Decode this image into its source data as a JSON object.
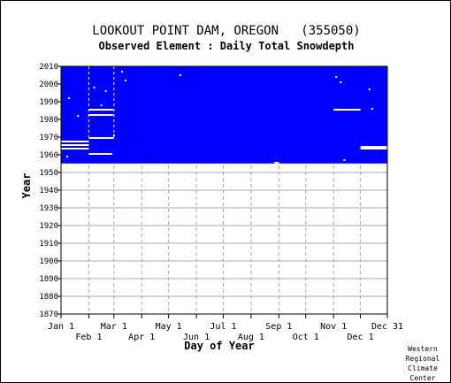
{
  "chart_data": {
    "type": "heatmap",
    "title": "LOOKOUT POINT DAM, OREGON   (355050)",
    "subtitle": "Observed Element : Daily Total Snowdepth",
    "xlabel": "Day of Year",
    "ylabel": "Year",
    "xlim": [
      1,
      365
    ],
    "ylim": [
      1870,
      2010
    ],
    "grid": true,
    "fill_color": "#0000ff",
    "gap_color": "#ffffff",
    "x_ticks_upper": [
      {
        "label": "Jan 1",
        "day": 1
      },
      {
        "label": "Mar 1",
        "day": 60
      },
      {
        "label": "May 1",
        "day": 121
      },
      {
        "label": "Jul 1",
        "day": 182
      },
      {
        "label": "Sep 1",
        "day": 244
      },
      {
        "label": "Nov 1",
        "day": 305
      },
      {
        "label": "Dec 31",
        "day": 365
      }
    ],
    "x_ticks_lower": [
      {
        "label": "Feb 1",
        "day": 32
      },
      {
        "label": "Apr 1",
        "day": 91
      },
      {
        "label": "Jun 1",
        "day": 152
      },
      {
        "label": "Aug 1",
        "day": 213
      },
      {
        "label": "Oct 1",
        "day": 274
      },
      {
        "label": "Dec 1",
        "day": 335
      }
    ],
    "y_ticks": [
      1870,
      1880,
      1890,
      1900,
      1910,
      1920,
      1930,
      1940,
      1950,
      1960,
      1970,
      1980,
      1990,
      2000,
      2010
    ],
    "coverage": {
      "start_year": 1955,
      "end_year": 2010,
      "start_day": 1,
      "end_day": 365
    },
    "missing_segments": [
      {
        "year": 1954.6,
        "start_day": 1,
        "end_day": 365
      },
      {
        "year": 1967.5,
        "start_day": 1,
        "end_day": 32
      },
      {
        "year": 1965.5,
        "start_day": 1,
        "end_day": 32
      },
      {
        "year": 1963.5,
        "start_day": 1,
        "end_day": 32
      },
      {
        "year": 1969.5,
        "start_day": 32,
        "end_day": 60
      },
      {
        "year": 1960.5,
        "start_day": 32,
        "end_day": 58
      },
      {
        "year": 1982.5,
        "start_day": 32,
        "end_day": 59
      },
      {
        "year": 1985.5,
        "start_day": 32,
        "end_day": 59
      },
      {
        "year": 1985.5,
        "start_day": 305,
        "end_day": 335
      },
      {
        "year": 1964.5,
        "start_day": 335,
        "end_day": 365
      },
      {
        "year": 1963.5,
        "start_day": 335,
        "end_day": 365
      },
      {
        "year": 1955.5,
        "start_day": 239,
        "end_day": 244
      }
    ],
    "missing_points": [
      {
        "year": 1992,
        "day": 10
      },
      {
        "year": 1998,
        "day": 38
      },
      {
        "year": 1996,
        "day": 51
      },
      {
        "year": 1988,
        "day": 46
      },
      {
        "year": 1982,
        "day": 20
      },
      {
        "year": 1959,
        "day": 8
      },
      {
        "year": 1971,
        "day": 60
      },
      {
        "year": 2007,
        "day": 69
      },
      {
        "year": 2002,
        "day": 73
      },
      {
        "year": 2005,
        "day": 134
      },
      {
        "year": 2004,
        "day": 308
      },
      {
        "year": 2001,
        "day": 313
      },
      {
        "year": 1997,
        "day": 345
      },
      {
        "year": 1986,
        "day": 348
      },
      {
        "year": 1957,
        "day": 317
      }
    ]
  },
  "footer": {
    "credit_lines": [
      "Western",
      "Regional",
      "Climate",
      "Center"
    ]
  }
}
